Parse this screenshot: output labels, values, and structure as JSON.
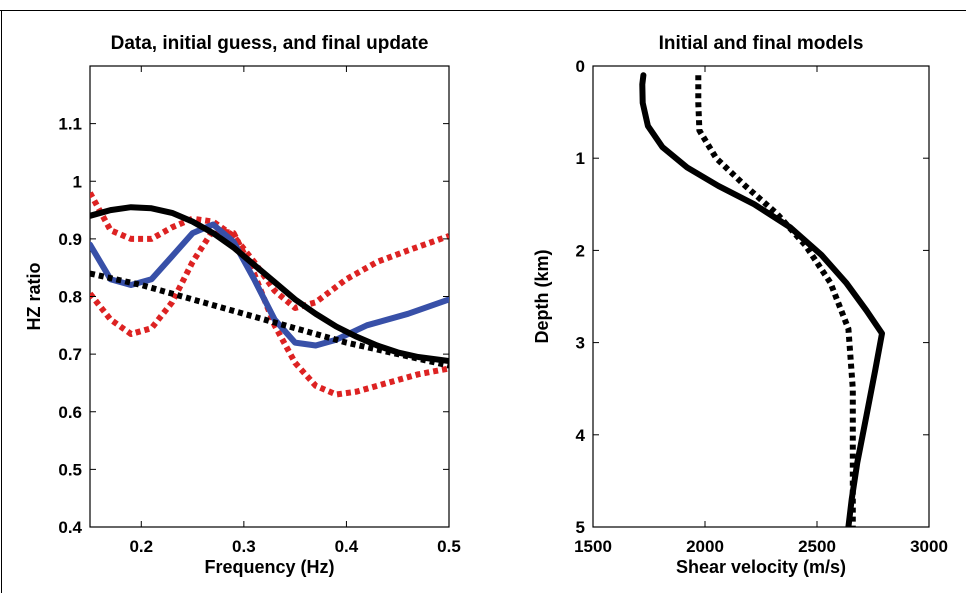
{
  "chart_data": [
    {
      "type": "line",
      "title": "Data, initial guess, and final update",
      "xlabel": "Frequency (Hz)",
      "ylabel": "HZ ratio",
      "xlim": [
        0.15,
        0.5
      ],
      "ylim": [
        0.4,
        1.2
      ],
      "xticks": [
        0.2,
        0.3,
        0.4,
        0.5
      ],
      "yticks": [
        0.4,
        0.5,
        0.6,
        0.7,
        0.8,
        0.9,
        1,
        1.1
      ],
      "xtick_labels": [
        "0.2",
        "0.3",
        "0.4",
        "0.5"
      ],
      "ytick_labels": [
        "0.4",
        "0.5",
        "0.6",
        "0.7",
        "0.8",
        "0.9",
        "1",
        "1.1"
      ],
      "grid": false,
      "series": [
        {
          "color": "#dd2222",
          "style": "dotted",
          "x": [
            0.15,
            0.17,
            0.19,
            0.21,
            0.23,
            0.25,
            0.27,
            0.29,
            0.31,
            0.33,
            0.35,
            0.37,
            0.4,
            0.43,
            0.46,
            0.5
          ],
          "y": [
            0.98,
            0.915,
            0.9,
            0.9,
            0.92,
            0.935,
            0.93,
            0.905,
            0.86,
            0.81,
            0.78,
            0.79,
            0.83,
            0.86,
            0.88,
            0.905
          ]
        },
        {
          "color": "#dd2222",
          "style": "dotted",
          "x": [
            0.15,
            0.17,
            0.19,
            0.21,
            0.23,
            0.25,
            0.27,
            0.29,
            0.31,
            0.33,
            0.35,
            0.37,
            0.39,
            0.41,
            0.44,
            0.47,
            0.5
          ],
          "y": [
            0.805,
            0.76,
            0.735,
            0.745,
            0.79,
            0.86,
            0.915,
            0.91,
            0.84,
            0.75,
            0.685,
            0.645,
            0.63,
            0.635,
            0.65,
            0.665,
            0.675
          ]
        },
        {
          "color": "#3850a8",
          "style": "solid",
          "x": [
            0.15,
            0.17,
            0.19,
            0.21,
            0.23,
            0.25,
            0.27,
            0.29,
            0.31,
            0.33,
            0.35,
            0.37,
            0.39,
            0.42,
            0.46,
            0.5
          ],
          "y": [
            0.89,
            0.83,
            0.82,
            0.83,
            0.87,
            0.91,
            0.925,
            0.895,
            0.83,
            0.76,
            0.72,
            0.715,
            0.725,
            0.75,
            0.77,
            0.795
          ]
        },
        {
          "color": "#000000",
          "style": "solid",
          "x": [
            0.15,
            0.17,
            0.19,
            0.21,
            0.23,
            0.25,
            0.27,
            0.29,
            0.31,
            0.33,
            0.35,
            0.37,
            0.39,
            0.41,
            0.43,
            0.45,
            0.47,
            0.5
          ],
          "y": [
            0.94,
            0.95,
            0.955,
            0.953,
            0.945,
            0.93,
            0.91,
            0.885,
            0.855,
            0.825,
            0.795,
            0.77,
            0.748,
            0.73,
            0.715,
            0.703,
            0.695,
            0.688
          ]
        },
        {
          "color": "#000000",
          "style": "dotted",
          "x": [
            0.15,
            0.2,
            0.25,
            0.3,
            0.35,
            0.4,
            0.45,
            0.5
          ],
          "y": [
            0.84,
            0.82,
            0.795,
            0.77,
            0.745,
            0.72,
            0.7,
            0.68
          ]
        }
      ]
    },
    {
      "type": "line",
      "title": "Initial and final models",
      "xlabel": "Shear velocity (m/s)",
      "ylabel": "Depth (km)",
      "xlim": [
        1500,
        3000
      ],
      "ylim": [
        0,
        5
      ],
      "y_inverted": true,
      "xticks": [
        1500,
        2000,
        2500,
        3000
      ],
      "yticks": [
        0,
        1,
        2,
        3,
        4,
        5
      ],
      "xtick_labels": [
        "1500",
        "2000",
        "2500",
        "3000"
      ],
      "ytick_labels": [
        "0",
        "1",
        "2",
        "3",
        "4",
        "5"
      ],
      "grid": false,
      "series": [
        {
          "color": "#000000",
          "style": "solid",
          "x": [
            1725,
            1720,
            1722,
            1745,
            1810,
            1920,
            2060,
            2220,
            2380,
            2520,
            2630,
            2720,
            2790,
            2760,
            2720,
            2680,
            2655,
            2640
          ],
          "y": [
            0.1,
            0.2,
            0.4,
            0.65,
            0.88,
            1.1,
            1.3,
            1.5,
            1.75,
            2.05,
            2.35,
            2.65,
            2.9,
            3.3,
            3.8,
            4.3,
            4.7,
            5.0
          ]
        },
        {
          "color": "#000000",
          "style": "dotted",
          "x": [
            1970,
            1970,
            1975,
            2050,
            2180,
            2320,
            2450,
            2560,
            2640,
            2660,
            2660,
            2660
          ],
          "y": [
            0.1,
            0.4,
            0.7,
            1.0,
            1.3,
            1.6,
            1.95,
            2.35,
            2.85,
            3.5,
            4.3,
            5.0
          ]
        }
      ]
    }
  ]
}
